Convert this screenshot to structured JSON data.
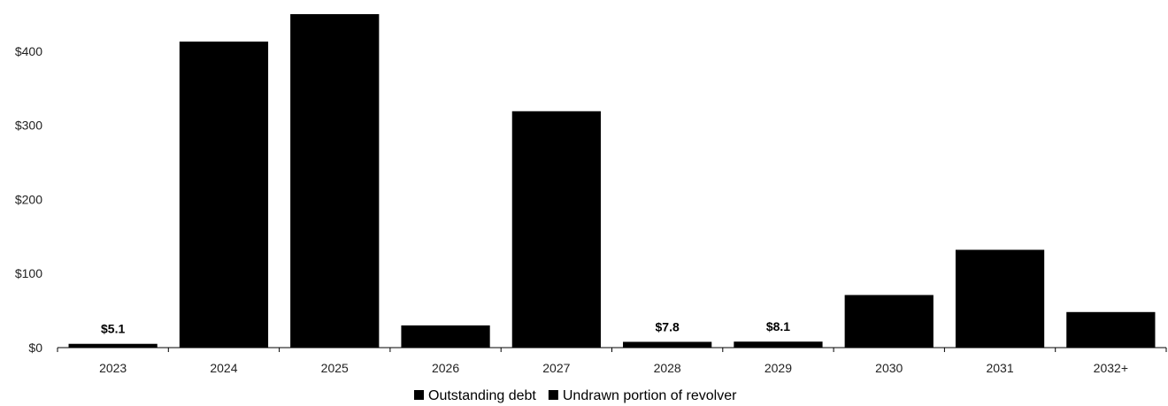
{
  "chart_data": {
    "type": "bar",
    "categories": [
      "2023",
      "2024",
      "2025",
      "2026",
      "2027",
      "2028",
      "2029",
      "2030",
      "2031",
      "2032+"
    ],
    "series": [
      {
        "name": "Outstanding debt",
        "values": [
          5.1,
          413,
          450,
          30,
          319,
          7.8,
          8.1,
          71,
          132,
          48
        ]
      },
      {
        "name": "Undrawn portion of revolver",
        "values": [
          0,
          0,
          0,
          0,
          0,
          0,
          0,
          0,
          0,
          0
        ]
      }
    ],
    "data_labels": [
      {
        "category": "2023",
        "text": "$5.1"
      },
      {
        "category": "2028",
        "text": "$7.8"
      },
      {
        "category": "2029",
        "text": "$8.1"
      }
    ],
    "y_ticks": [
      {
        "value": 0,
        "label": "$0"
      },
      {
        "value": 100,
        "label": "$100"
      },
      {
        "value": 200,
        "label": "$200"
      },
      {
        "value": 300,
        "label": "$300"
      },
      {
        "value": 400,
        "label": "$400"
      }
    ],
    "ylim": [
      0,
      450
    ],
    "title": "",
    "xlabel": "",
    "ylabel": "",
    "grid": false,
    "legend_position": "bottom-center",
    "colors": {
      "bar": "#000000",
      "axis": "#000000",
      "text": "#222222"
    }
  }
}
